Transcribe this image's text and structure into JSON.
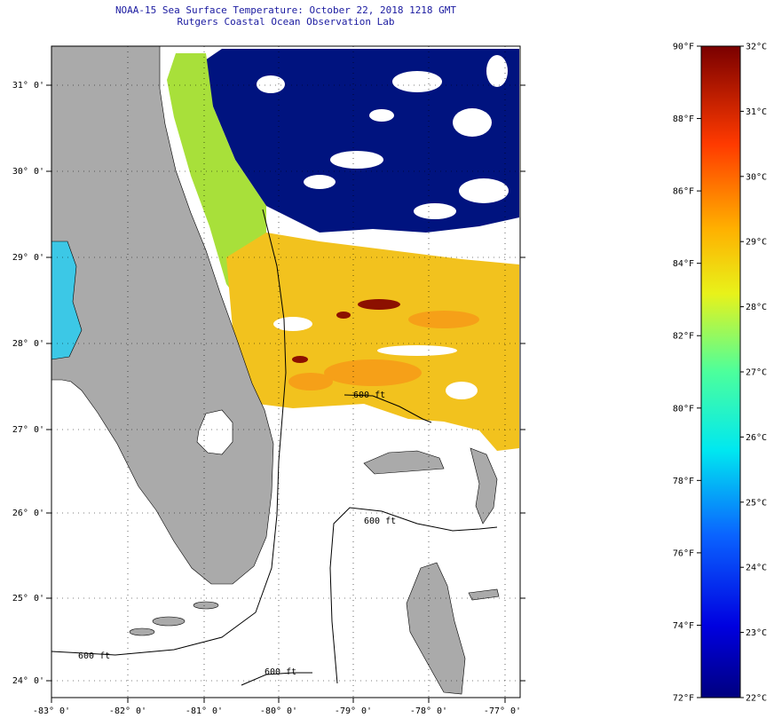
{
  "title": {
    "line1": "NOAA-15 Sea Surface Temperature:  October 22, 2018 1218 GMT",
    "line2": "Rutgers Coastal Ocean Observation Lab"
  },
  "map": {
    "lat_labels": [
      "31° 0'",
      "30° 0'",
      "29° 0'",
      "28° 0'",
      "27° 0'",
      "26° 0'",
      "25° 0'",
      "24° 0'"
    ],
    "lon_labels": [
      "-83° 0'",
      "-82° 0'",
      "-81° 0'",
      "-80° 0'",
      "-79° 0'",
      "-78° 0'",
      "-77° 0'"
    ],
    "contour_label": "600 ft",
    "colors": {
      "land": "#aaaaaa",
      "cold": "#00137f",
      "warm": "#f2c21e",
      "hot": "#8c1000"
    }
  },
  "colorbar": {
    "fahrenheit": [
      "90°F",
      "88°F",
      "86°F",
      "84°F",
      "82°F",
      "80°F",
      "78°F",
      "76°F",
      "74°F",
      "72°F"
    ],
    "celsius": [
      "32°C",
      "31°C",
      "30°C",
      "29°C",
      "28°C",
      "27°C",
      "26°C",
      "25°C",
      "24°C",
      "23°C",
      "22°C"
    ],
    "range_f": [
      72,
      90
    ],
    "range_c": [
      22,
      32
    ]
  }
}
